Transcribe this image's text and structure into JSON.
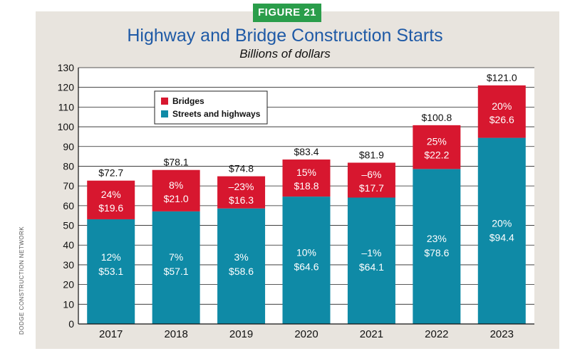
{
  "figure_label": "FIGURE 21",
  "source_note": "DODGE CONSTRUCTION NETWORK",
  "colors": {
    "bridges": "#d7172f",
    "streets": "#0f8aa6",
    "title": "#1f5aa6",
    "badge": "#2a9d4a",
    "panel": "#e8e4de"
  },
  "chart_data": {
    "type": "bar",
    "stacked": true,
    "title": "Highway and Bridge Construction Starts",
    "subtitle": "Billions of dollars",
    "categories": [
      "2017",
      "2018",
      "2019",
      "2020",
      "2021",
      "2022",
      "2023"
    ],
    "ylim": [
      0,
      130
    ],
    "yticks": [
      "0",
      "10",
      "20",
      "30",
      "40",
      "50",
      "60",
      "70",
      "80",
      "90",
      "100",
      "110",
      "120",
      "130"
    ],
    "grid": true,
    "legend_position": "top-left",
    "series": [
      {
        "name": "Streets and highways",
        "values": [
          53.1,
          57.1,
          58.6,
          64.6,
          64.1,
          78.6,
          94.4
        ],
        "value_labels": [
          "$53.1",
          "$57.1",
          "$58.6",
          "$64.6",
          "$64.1",
          "$78.6",
          "$94.4"
        ],
        "pct_labels": [
          "12%",
          "7%",
          "3%",
          "10%",
          "–1%",
          "23%",
          "20%"
        ]
      },
      {
        "name": "Bridges",
        "values": [
          19.6,
          21.0,
          16.3,
          18.8,
          17.7,
          22.2,
          26.6
        ],
        "value_labels": [
          "$19.6",
          "$21.0",
          "$16.3",
          "$18.8",
          "$17.7",
          "$22.2",
          "$26.6"
        ],
        "pct_labels": [
          "24%",
          "8%",
          "–23%",
          "15%",
          "–6%",
          "25%",
          "20%"
        ]
      }
    ],
    "totals": [
      72.7,
      78.1,
      74.8,
      83.4,
      81.9,
      100.8,
      121.0
    ],
    "total_labels": [
      "$72.7",
      "$78.1",
      "$74.8",
      "$83.4",
      "$81.9",
      "$100.8",
      "$121.0"
    ]
  }
}
